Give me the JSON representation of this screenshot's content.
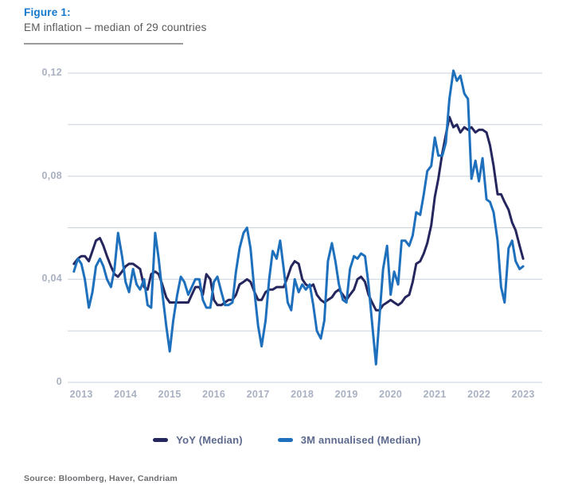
{
  "source": "Source: Bloomberg, Haver, Candriam",
  "colors": {
    "figure_label": "#1478cb",
    "subtitle": "#58595b",
    "tick_label": "#a9b1c2",
    "legend_text": "#5d6a8e",
    "source_text": "#6c6d70",
    "yoy_line": "#26265e",
    "m3_line": "#1e70bd",
    "grid": "#c9d1dc"
  },
  "chart_data": {
    "type": "line",
    "title": "Figure 1:",
    "subtitle": "EM inflation – median of 29 countries",
    "xlabel": "",
    "ylabel": "",
    "legend_position": "bottom",
    "grid": "horizontal-only",
    "grid_step": 0.02,
    "grid_color": "#c9d1dc",
    "xlim": [
      2012.69,
      2023.43
    ],
    "ylim": [
      0,
      0.12
    ],
    "x_ticks": [
      2013,
      2014,
      2015,
      2016,
      2017,
      2018,
      2019,
      2020,
      2021,
      2022,
      2023
    ],
    "y_ticks": [
      0,
      0.04,
      0.08,
      0.12
    ],
    "y_tick_labels": [
      "0",
      "0,04",
      "0,08",
      "0,12"
    ],
    "x": [
      2012.83,
      2012.92,
      2013.0,
      2013.08,
      2013.17,
      2013.25,
      2013.33,
      2013.42,
      2013.5,
      2013.58,
      2013.67,
      2013.75,
      2013.83,
      2013.92,
      2014.0,
      2014.08,
      2014.17,
      2014.25,
      2014.33,
      2014.42,
      2014.5,
      2014.58,
      2014.67,
      2014.75,
      2014.83,
      2014.92,
      2015.0,
      2015.08,
      2015.17,
      2015.25,
      2015.33,
      2015.42,
      2015.5,
      2015.58,
      2015.67,
      2015.75,
      2015.83,
      2015.92,
      2016.0,
      2016.08,
      2016.17,
      2016.25,
      2016.33,
      2016.42,
      2016.5,
      2016.58,
      2016.67,
      2016.75,
      2016.83,
      2016.92,
      2017.0,
      2017.08,
      2017.17,
      2017.25,
      2017.33,
      2017.42,
      2017.5,
      2017.58,
      2017.67,
      2017.75,
      2017.83,
      2017.92,
      2018.0,
      2018.08,
      2018.17,
      2018.25,
      2018.33,
      2018.42,
      2018.5,
      2018.58,
      2018.67,
      2018.75,
      2018.83,
      2018.92,
      2019.0,
      2019.08,
      2019.17,
      2019.25,
      2019.33,
      2019.42,
      2019.5,
      2019.58,
      2019.67,
      2019.75,
      2019.83,
      2019.92,
      2020.0,
      2020.08,
      2020.17,
      2020.25,
      2020.33,
      2020.42,
      2020.5,
      2020.58,
      2020.67,
      2020.75,
      2020.83,
      2020.92,
      2021.0,
      2021.08,
      2021.17,
      2021.25,
      2021.33,
      2021.42,
      2021.5,
      2021.58,
      2021.67,
      2021.75,
      2021.83,
      2021.92,
      2022.0,
      2022.08,
      2022.17,
      2022.25,
      2022.33,
      2022.42,
      2022.5,
      2022.58,
      2022.67,
      2022.75,
      2022.83,
      2022.92,
      2023.0
    ],
    "series": [
      {
        "name": "YoY (Median)",
        "color": "#26265e",
        "values": [
          0.046,
          0.048,
          0.049,
          0.049,
          0.047,
          0.051,
          0.055,
          0.056,
          0.053,
          0.049,
          0.045,
          0.042,
          0.041,
          0.043,
          0.045,
          0.046,
          0.046,
          0.045,
          0.044,
          0.037,
          0.036,
          0.042,
          0.043,
          0.042,
          0.038,
          0.033,
          0.031,
          0.031,
          0.031,
          0.031,
          0.031,
          0.031,
          0.034,
          0.037,
          0.037,
          0.034,
          0.042,
          0.04,
          0.032,
          0.03,
          0.03,
          0.031,
          0.032,
          0.032,
          0.034,
          0.038,
          0.039,
          0.04,
          0.039,
          0.035,
          0.032,
          0.032,
          0.035,
          0.036,
          0.036,
          0.037,
          0.037,
          0.037,
          0.041,
          0.045,
          0.047,
          0.046,
          0.04,
          0.038,
          0.037,
          0.038,
          0.034,
          0.032,
          0.031,
          0.032,
          0.033,
          0.035,
          0.036,
          0.034,
          0.032,
          0.034,
          0.036,
          0.04,
          0.041,
          0.039,
          0.034,
          0.031,
          0.028,
          0.028,
          0.03,
          0.031,
          0.032,
          0.031,
          0.03,
          0.031,
          0.033,
          0.034,
          0.039,
          0.046,
          0.047,
          0.05,
          0.054,
          0.061,
          0.072,
          0.079,
          0.089,
          0.096,
          0.103,
          0.099,
          0.1,
          0.097,
          0.099,
          0.098,
          0.099,
          0.097,
          0.098,
          0.098,
          0.097,
          0.092,
          0.084,
          0.073,
          0.073,
          0.07,
          0.067,
          0.062,
          0.059,
          0.053,
          0.048
        ]
      },
      {
        "name": "3M annualised (Median)",
        "color": "#1e70bd",
        "values": [
          0.043,
          0.048,
          0.046,
          0.04,
          0.029,
          0.035,
          0.045,
          0.048,
          0.045,
          0.04,
          0.037,
          0.044,
          0.058,
          0.049,
          0.039,
          0.035,
          0.044,
          0.038,
          0.036,
          0.04,
          0.03,
          0.029,
          0.058,
          0.048,
          0.035,
          0.022,
          0.012,
          0.024,
          0.034,
          0.041,
          0.039,
          0.034,
          0.037,
          0.04,
          0.04,
          0.032,
          0.029,
          0.029,
          0.039,
          0.041,
          0.035,
          0.03,
          0.03,
          0.031,
          0.043,
          0.052,
          0.058,
          0.06,
          0.052,
          0.035,
          0.022,
          0.014,
          0.024,
          0.04,
          0.051,
          0.048,
          0.055,
          0.044,
          0.031,
          0.028,
          0.04,
          0.035,
          0.038,
          0.036,
          0.038,
          0.03,
          0.02,
          0.017,
          0.024,
          0.047,
          0.054,
          0.047,
          0.038,
          0.032,
          0.031,
          0.044,
          0.049,
          0.048,
          0.05,
          0.049,
          0.038,
          0.023,
          0.007,
          0.026,
          0.044,
          0.053,
          0.034,
          0.043,
          0.038,
          0.055,
          0.055,
          0.053,
          0.057,
          0.066,
          0.065,
          0.073,
          0.082,
          0.084,
          0.095,
          0.088,
          0.088,
          0.093,
          0.11,
          0.121,
          0.117,
          0.119,
          0.112,
          0.11,
          0.079,
          0.086,
          0.078,
          0.087,
          0.071,
          0.07,
          0.066,
          0.055,
          0.037,
          0.031,
          0.052,
          0.055,
          0.047,
          0.044,
          0.045
        ]
      }
    ]
  }
}
